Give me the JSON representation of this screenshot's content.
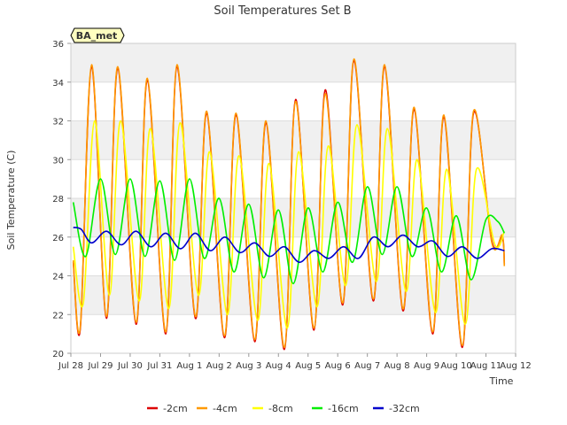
{
  "chart_data": {
    "type": "line",
    "title": "Soil Temperatures Set B",
    "xlabel": "Time",
    "ylabel": "Soil Temperature (C)",
    "station_label": "BA_met",
    "ylim": [
      20,
      36
    ],
    "xlim": [
      0,
      15
    ],
    "yticks": [
      20,
      22,
      24,
      26,
      28,
      30,
      32,
      34,
      36
    ],
    "xtick_labels": [
      "Jul 28",
      "Jul 29",
      "Jul 30",
      "Jul 31",
      "Aug 1",
      "Aug 2",
      "Aug 3",
      "Aug 4",
      "Aug 5",
      "Aug 6",
      "Aug 7",
      "Aug 8",
      "Aug 9",
      "Aug 10",
      "Aug 11",
      "Aug 12"
    ],
    "grid": true,
    "legend_position": "bottom",
    "x_unit": "days since Jul 28",
    "series": [
      {
        "name": "-2cm",
        "color": "#dd0000",
        "x": [
          0.08,
          0.32,
          0.7,
          1.2,
          1.58,
          2.2,
          2.58,
          3.2,
          3.58,
          4.2,
          4.58,
          5.18,
          5.57,
          6.2,
          6.58,
          7.2,
          7.58,
          8.2,
          8.58,
          9.17,
          9.55,
          10.2,
          10.58,
          11.2,
          11.58,
          12.2,
          12.58,
          13.2,
          13.58,
          14.2,
          14.55,
          14.62
        ],
        "y": [
          24.7,
          21.3,
          34.8,
          21.8,
          34.7,
          21.5,
          34.1,
          21.0,
          34.8,
          21.8,
          32.4,
          20.8,
          32.3,
          20.6,
          31.9,
          20.2,
          33.1,
          21.2,
          33.6,
          22.5,
          35.1,
          22.7,
          34.8,
          22.2,
          32.6,
          21.0,
          32.2,
          20.3,
          32.4,
          25.8,
          26.0,
          24.6
        ]
      },
      {
        "name": "-4cm",
        "color": "#ff9900",
        "x": [
          0.08,
          0.32,
          0.7,
          1.2,
          1.58,
          2.2,
          2.58,
          3.2,
          3.58,
          4.2,
          4.58,
          5.18,
          5.57,
          6.2,
          6.58,
          7.2,
          7.58,
          8.2,
          8.58,
          9.17,
          9.55,
          10.2,
          10.58,
          11.2,
          11.58,
          12.2,
          12.58,
          13.2,
          13.58,
          14.2,
          14.55,
          14.62
        ],
        "y": [
          24.8,
          21.4,
          34.9,
          21.9,
          34.8,
          21.6,
          34.2,
          21.1,
          34.9,
          21.9,
          32.5,
          20.9,
          32.4,
          20.7,
          32.0,
          20.3,
          33.0,
          21.3,
          33.4,
          22.6,
          35.2,
          22.8,
          34.9,
          22.3,
          32.7,
          21.1,
          32.3,
          20.4,
          32.5,
          25.7,
          26.1,
          24.5
        ]
      },
      {
        "name": "-8cm",
        "color": "#ffff00",
        "x": [
          0.08,
          0.42,
          0.8,
          1.3,
          1.68,
          2.3,
          2.68,
          3.3,
          3.68,
          4.3,
          4.68,
          5.28,
          5.67,
          6.3,
          6.68,
          7.3,
          7.68,
          8.3,
          8.68,
          9.27,
          9.65,
          10.3,
          10.68,
          11.3,
          11.68,
          12.3,
          12.68,
          13.3,
          13.68,
          14.3,
          14.62
        ],
        "y": [
          25.5,
          22.6,
          32.0,
          23.0,
          32.0,
          22.7,
          31.6,
          22.3,
          31.9,
          23.0,
          30.4,
          22.0,
          30.2,
          21.7,
          29.8,
          21.3,
          30.4,
          22.4,
          30.7,
          23.5,
          31.8,
          23.7,
          31.6,
          23.2,
          30.0,
          22.1,
          29.5,
          21.5,
          29.5,
          25.6,
          26.3
        ]
      },
      {
        "name": "-16cm",
        "color": "#00ee00",
        "x": [
          0.08,
          0.5,
          1.0,
          1.5,
          2.0,
          2.5,
          3.0,
          3.5,
          4.0,
          4.5,
          5.0,
          5.5,
          6.0,
          6.5,
          7.0,
          7.5,
          8.0,
          8.5,
          9.0,
          9.5,
          10.0,
          10.5,
          11.0,
          11.5,
          12.0,
          12.5,
          13.0,
          13.5,
          14.0,
          14.4,
          14.62
        ],
        "y": [
          27.8,
          25.0,
          29.0,
          25.1,
          29.0,
          25.0,
          28.9,
          24.8,
          29.0,
          24.9,
          28.0,
          24.2,
          27.7,
          23.9,
          27.4,
          23.6,
          27.5,
          24.2,
          27.8,
          24.7,
          28.6,
          25.1,
          28.6,
          25.0,
          27.5,
          24.2,
          27.1,
          23.8,
          26.9,
          26.8,
          26.2
        ]
      },
      {
        "name": "-32cm",
        "color": "#0000cc",
        "x": [
          0.08,
          0.35,
          0.7,
          1.2,
          1.7,
          2.2,
          2.7,
          3.2,
          3.7,
          4.2,
          4.7,
          5.2,
          5.7,
          6.2,
          6.7,
          7.2,
          7.7,
          8.2,
          8.7,
          9.2,
          9.7,
          10.2,
          10.7,
          11.2,
          11.7,
          12.2,
          12.7,
          13.2,
          13.7,
          14.2,
          14.62
        ],
        "y": [
          26.5,
          26.4,
          25.7,
          26.3,
          25.6,
          26.3,
          25.5,
          26.2,
          25.4,
          26.2,
          25.3,
          26.0,
          25.2,
          25.7,
          25.0,
          25.5,
          24.7,
          25.3,
          24.9,
          25.5,
          24.9,
          26.0,
          25.5,
          26.1,
          25.5,
          25.8,
          25.0,
          25.5,
          24.9,
          25.4,
          25.3
        ]
      }
    ]
  }
}
